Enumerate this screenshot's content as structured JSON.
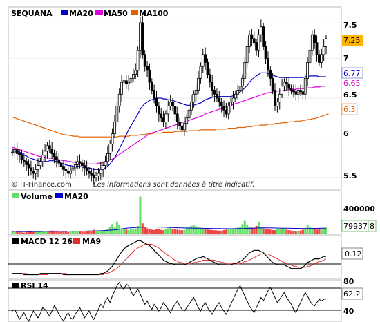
{
  "chart_data": [
    {
      "type": "candlestick",
      "title": "SEQUANA",
      "legend": [
        "MA20",
        "MA50",
        "MA100"
      ],
      "colors": {
        "MA20": "#0000c8",
        "MA50": "#e000e0",
        "MA100": "#e06000",
        "bull": "#ffffff",
        "bear": "#000000"
      },
      "ylim": [
        5.35,
        7.65
      ],
      "yticks": [
        "7.5",
        "7",
        "6.5",
        "6",
        "5.5"
      ],
      "last_labels": {
        "price": "7.25",
        "ma20": "6.77",
        "ma50": "6.65",
        "ma100": "6.3"
      },
      "close": [
        5.82,
        5.85,
        5.8,
        5.78,
        5.72,
        5.7,
        5.66,
        5.62,
        5.58,
        5.55,
        5.6,
        5.65,
        5.7,
        5.78,
        5.83,
        5.9,
        5.86,
        5.8,
        5.76,
        5.72,
        5.68,
        5.64,
        5.6,
        5.58,
        5.55,
        5.58,
        5.62,
        5.66,
        5.7,
        5.68,
        5.65,
        5.62,
        5.58,
        5.55,
        5.53,
        5.5,
        5.52,
        5.55,
        5.6,
        5.65,
        5.7,
        5.8,
        5.92,
        6.05,
        6.2,
        6.4,
        6.55,
        6.7,
        6.72,
        6.68,
        6.7,
        6.75,
        6.8,
        6.85,
        7.1,
        7.45,
        7.05,
        6.9,
        6.85,
        6.7,
        6.6,
        6.5,
        6.4,
        6.3,
        6.25,
        6.2,
        6.3,
        6.4,
        6.45,
        6.4,
        6.3,
        6.2,
        6.15,
        6.1,
        6.18,
        6.25,
        6.35,
        6.45,
        6.55,
        6.6,
        6.75,
        6.9,
        7.05,
        6.95,
        6.8,
        6.7,
        6.6,
        6.55,
        6.5,
        6.45,
        6.4,
        6.35,
        6.3,
        6.4,
        6.45,
        6.5,
        6.55,
        6.6,
        6.65,
        6.75,
        6.95,
        7.15,
        7.3,
        7.25,
        7.2,
        7.1,
        7.3,
        7.4,
        7.15,
        7.0,
        6.85,
        6.75,
        6.6,
        6.4,
        6.45,
        6.55,
        6.65,
        6.7,
        6.68,
        6.62,
        6.6,
        6.58,
        6.55,
        6.6,
        6.58,
        6.55,
        6.75,
        6.95,
        7.1,
        7.3,
        7.2,
        7.05,
        6.95,
        7.05,
        7.15,
        7.25
      ],
      "ma20": [
        5.85,
        5.84,
        5.83,
        5.82,
        5.8,
        5.78,
        5.77,
        5.75,
        5.74,
        5.73,
        5.72,
        5.71,
        5.7,
        5.7,
        5.7,
        5.7,
        5.71,
        5.71,
        5.71,
        5.7,
        5.69,
        5.68,
        5.67,
        5.66,
        5.65,
        5.65,
        5.64,
        5.64,
        5.64,
        5.64,
        5.63,
        5.63,
        5.62,
        5.62,
        5.61,
        5.6,
        5.6,
        5.6,
        5.6,
        5.61,
        5.62,
        5.64,
        5.67,
        5.71,
        5.75,
        5.8,
        5.86,
        5.92,
        5.98,
        6.04,
        6.1,
        6.15,
        6.2,
        6.25,
        6.3,
        6.36,
        6.4,
        6.43,
        6.45,
        6.47,
        6.48,
        6.49,
        6.5,
        6.5,
        6.5,
        6.49,
        6.49,
        6.48,
        6.48,
        6.47,
        6.46,
        6.45,
        6.44,
        6.43,
        6.42,
        6.41,
        6.41,
        6.41,
        6.41,
        6.42,
        6.43,
        6.44,
        6.46,
        6.48,
        6.49,
        6.5,
        6.51,
        6.52,
        6.52,
        6.52,
        6.52,
        6.52,
        6.52,
        6.52,
        6.52,
        6.53,
        6.54,
        6.56,
        6.58,
        6.6,
        6.63,
        6.66,
        6.7,
        6.73,
        6.76,
        6.78,
        6.8,
        6.82,
        6.82,
        6.82,
        6.81,
        6.8,
        6.79,
        6.78,
        6.77,
        6.76,
        6.76,
        6.76,
        6.76,
        6.76,
        6.76,
        6.76,
        6.76,
        6.76,
        6.76,
        6.76,
        6.77,
        6.77,
        6.78,
        6.78,
        6.78,
        6.78,
        6.77,
        6.77,
        6.77,
        6.77
      ],
      "ma50": [
        5.88,
        5.87,
        5.86,
        5.85,
        5.84,
        5.83,
        5.82,
        5.81,
        5.8,
        5.79,
        5.78,
        5.77,
        5.76,
        5.76,
        5.75,
        5.75,
        5.74,
        5.74,
        5.73,
        5.73,
        5.72,
        5.72,
        5.71,
        5.71,
        5.7,
        5.7,
        5.69,
        5.69,
        5.68,
        5.68,
        5.68,
        5.67,
        5.67,
        5.67,
        5.67,
        5.67,
        5.67,
        5.68,
        5.68,
        5.69,
        5.7,
        5.71,
        5.72,
        5.73,
        5.75,
        5.77,
        5.79,
        5.81,
        5.83,
        5.85,
        5.87,
        5.89,
        5.91,
        5.93,
        5.95,
        5.97,
        5.99,
        6.01,
        6.03,
        6.05,
        6.06,
        6.07,
        6.08,
        6.09,
        6.1,
        6.11,
        6.12,
        6.13,
        6.14,
        6.15,
        6.16,
        6.17,
        6.18,
        6.19,
        6.2,
        6.21,
        6.22,
        6.23,
        6.24,
        6.25,
        6.26,
        6.27,
        6.28,
        6.3,
        6.31,
        6.32,
        6.33,
        6.34,
        6.35,
        6.36,
        6.37,
        6.38,
        6.39,
        6.4,
        6.41,
        6.42,
        6.43,
        6.44,
        6.45,
        6.46,
        6.47,
        6.48,
        6.49,
        6.5,
        6.51,
        6.52,
        6.53,
        6.54,
        6.55,
        6.56,
        6.57,
        6.57,
        6.58,
        6.58,
        6.59,
        6.59,
        6.6,
        6.6,
        6.6,
        6.61,
        6.61,
        6.61,
        6.61,
        6.62,
        6.62,
        6.62,
        6.62,
        6.63,
        6.63,
        6.63,
        6.64,
        6.64,
        6.64,
        6.65,
        6.65,
        6.65
      ],
      "ma100": [
        6.26,
        6.25,
        6.24,
        6.23,
        6.22,
        6.21,
        6.2,
        6.19,
        6.18,
        6.17,
        6.16,
        6.15,
        6.14,
        6.13,
        6.12,
        6.11,
        6.1,
        6.09,
        6.08,
        6.07,
        6.06,
        6.05,
        6.04,
        6.04,
        6.03,
        6.03,
        6.02,
        6.02,
        6.02,
        6.01,
        6.01,
        6.01,
        6.01,
        6.01,
        6.01,
        6.01,
        6.01,
        6.01,
        6.01,
        6.01,
        6.01,
        6.01,
        6.01,
        6.01,
        6.01,
        6.01,
        6.02,
        6.02,
        6.02,
        6.02,
        6.02,
        6.03,
        6.03,
        6.03,
        6.03,
        6.04,
        6.04,
        6.04,
        6.05,
        6.05,
        6.05,
        6.06,
        6.06,
        6.06,
        6.06,
        6.07,
        6.07,
        6.07,
        6.07,
        6.07,
        6.08,
        6.08,
        6.08,
        6.08,
        6.08,
        6.08,
        6.09,
        6.09,
        6.09,
        6.09,
        6.09,
        6.1,
        6.1,
        6.1,
        6.1,
        6.1,
        6.1,
        6.1,
        6.11,
        6.11,
        6.11,
        6.11,
        6.11,
        6.12,
        6.12,
        6.12,
        6.12,
        6.13,
        6.13,
        6.13,
        6.13,
        6.14,
        6.14,
        6.14,
        6.15,
        6.15,
        6.15,
        6.16,
        6.16,
        6.16,
        6.17,
        6.17,
        6.17,
        6.18,
        6.18,
        6.18,
        6.19,
        6.19,
        6.19,
        6.2,
        6.2,
        6.2,
        6.21,
        6.21,
        6.21,
        6.22,
        6.22,
        6.23,
        6.23,
        6.24,
        6.24,
        6.25,
        6.26,
        6.27,
        6.28,
        6.29,
        6.3
      ]
    },
    {
      "type": "bar",
      "title": "Volume",
      "legend": [
        "Volume",
        "MA20"
      ],
      "colors": {
        "up": "#66dd66",
        "down": "#ee4444",
        "ma": "#0000c8"
      },
      "ylim": [
        0,
        520000
      ],
      "yticks": [
        "400000"
      ],
      "last_labels": {
        "volume": "79937",
        "extra": "8"
      },
      "values": [
        40000,
        25000,
        30000,
        35000,
        22000,
        18000,
        28000,
        42000,
        30000,
        26000,
        35000,
        40000,
        38000,
        30000,
        24000,
        28000,
        32000,
        45000,
        36000,
        40000,
        30000,
        28000,
        32000,
        35000,
        26000,
        30000,
        34000,
        38000,
        42000,
        36000,
        32000,
        30000,
        38000,
        34000,
        40000,
        52000,
        44000,
        38000,
        36000,
        44000,
        48000,
        60000,
        90000,
        120000,
        80000,
        150000,
        110000,
        70000,
        60000,
        55000,
        50000,
        58000,
        65000,
        70000,
        100000,
        450000,
        130000,
        90000,
        70000,
        60000,
        55000,
        50000,
        60000,
        58000,
        52000,
        48000,
        62000,
        70000,
        75000,
        65000,
        60000,
        55000,
        50000,
        48000,
        52000,
        80000,
        90000,
        100000,
        110000,
        95000,
        80000,
        70000,
        65000,
        60000,
        55000,
        52000,
        50000,
        48000,
        46000,
        44000,
        42000,
        50000,
        55000,
        60000,
        62000,
        70000,
        75000,
        80000,
        85000,
        120000,
        160000,
        110000,
        90000,
        80000,
        75000,
        100000,
        150000,
        90000,
        70000,
        65000,
        60000,
        55000,
        50000,
        48000,
        60000,
        65000,
        70000,
        60000,
        55000,
        50000,
        45000,
        42000,
        40000,
        38000,
        45000,
        55000,
        75000,
        110000,
        90000,
        70000,
        60000,
        55000,
        60000,
        65000,
        70000,
        79937
      ],
      "ma20": [
        34000,
        33500,
        33000,
        32800,
        32500,
        32300,
        32000,
        32000,
        32200,
        32500,
        32800,
        33000,
        33200,
        33500,
        33800,
        34000,
        34200,
        34500,
        34800,
        35000,
        35200,
        35400,
        35600,
        35800,
        36000,
        36200,
        36400,
        36600,
        36800,
        37000,
        37400,
        37800,
        38200,
        38600,
        39000,
        39500,
        40000,
        41000,
        42000,
        43500,
        45000,
        47000,
        49000,
        51000,
        53000,
        56000,
        60000,
        64000,
        68000,
        72000,
        74000,
        76000,
        78000,
        80000,
        82000,
        84000,
        85000,
        85500,
        86000,
        86500,
        87000,
        87000,
        86500,
        86000,
        85000,
        84000,
        83000,
        82000,
        81000,
        80000,
        79000,
        78000,
        77000,
        76000,
        75000,
        74500,
        74000,
        73500,
        73000,
        72500,
        72000,
        71500,
        71000,
        70500,
        70000,
        69500,
        69000,
        68500,
        68000,
        67500,
        67000,
        66800,
        66600,
        66400,
        66200,
        66000,
        66500,
        67000,
        67500,
        68000,
        69000,
        70000,
        71000,
        72000,
        73000,
        74000,
        75000,
        75500,
        76000,
        76000,
        75800,
        75500,
        75000,
        74500,
        74000,
        73500,
        73000,
        72500,
        72000,
        71500,
        71000,
        70500,
        70000,
        69500,
        69000,
        68500,
        68000,
        68500,
        69000,
        69500,
        70000,
        70500,
        71000,
        71500,
        72000,
        72500
      ]
    },
    {
      "type": "line",
      "title": "MACD 12 26",
      "legend": [
        "MACD 12 26",
        "MA9"
      ],
      "colors": {
        "macd": "#000000",
        "signal": "#e03030"
      },
      "ylim": [
        -0.05,
        0.28
      ],
      "last_labels": {
        "macd": "0.12"
      },
      "macd": [
        -0.02,
        -0.02,
        -0.02,
        -0.02,
        -0.02,
        -0.03,
        -0.03,
        -0.03,
        -0.03,
        -0.03,
        -0.03,
        -0.03,
        -0.02,
        -0.02,
        -0.02,
        -0.02,
        -0.02,
        -0.02,
        -0.02,
        -0.02,
        -0.02,
        -0.02,
        -0.03,
        -0.03,
        -0.03,
        -0.03,
        -0.03,
        -0.03,
        -0.03,
        -0.03,
        -0.03,
        -0.03,
        -0.03,
        -0.03,
        -0.03,
        -0.03,
        -0.03,
        -0.03,
        -0.02,
        -0.02,
        -0.01,
        0.0,
        0.02,
        0.04,
        0.07,
        0.1,
        0.13,
        0.16,
        0.18,
        0.2,
        0.21,
        0.22,
        0.23,
        0.24,
        0.25,
        0.25,
        0.24,
        0.23,
        0.22,
        0.21,
        0.19,
        0.17,
        0.15,
        0.13,
        0.11,
        0.09,
        0.08,
        0.07,
        0.06,
        0.06,
        0.05,
        0.05,
        0.05,
        0.05,
        0.05,
        0.06,
        0.07,
        0.08,
        0.09,
        0.1,
        0.11,
        0.11,
        0.12,
        0.11,
        0.1,
        0.09,
        0.08,
        0.07,
        0.06,
        0.05,
        0.05,
        0.05,
        0.05,
        0.05,
        0.05,
        0.06,
        0.06,
        0.07,
        0.08,
        0.09,
        0.11,
        0.13,
        0.15,
        0.16,
        0.17,
        0.17,
        0.17,
        0.16,
        0.15,
        0.13,
        0.11,
        0.09,
        0.07,
        0.06,
        0.05,
        0.05,
        0.05,
        0.05,
        0.04,
        0.03,
        0.02,
        0.02,
        0.02,
        0.02,
        0.02,
        0.03,
        0.05,
        0.07,
        0.08,
        0.09,
        0.1,
        0.1,
        0.1,
        0.11,
        0.12,
        0.12
      ],
      "ma9": [
        -0.02,
        -0.02,
        -0.02,
        -0.02,
        -0.02,
        -0.02,
        -0.02,
        -0.03,
        -0.03,
        -0.03,
        -0.03,
        -0.03,
        -0.03,
        -0.03,
        -0.03,
        -0.03,
        -0.02,
        -0.02,
        -0.02,
        -0.02,
        -0.02,
        -0.02,
        -0.02,
        -0.02,
        -0.03,
        -0.03,
        -0.03,
        -0.03,
        -0.03,
        -0.03,
        -0.03,
        -0.03,
        -0.03,
        -0.03,
        -0.03,
        -0.03,
        -0.03,
        -0.03,
        -0.03,
        -0.03,
        -0.02,
        -0.02,
        -0.01,
        0.0,
        0.01,
        0.02,
        0.04,
        0.06,
        0.08,
        0.1,
        0.12,
        0.14,
        0.16,
        0.18,
        0.19,
        0.2,
        0.21,
        0.22,
        0.22,
        0.22,
        0.22,
        0.21,
        0.2,
        0.19,
        0.17,
        0.16,
        0.14,
        0.13,
        0.12,
        0.1,
        0.09,
        0.08,
        0.07,
        0.07,
        0.06,
        0.06,
        0.06,
        0.06,
        0.07,
        0.07,
        0.08,
        0.08,
        0.09,
        0.09,
        0.09,
        0.09,
        0.09,
        0.09,
        0.08,
        0.08,
        0.07,
        0.07,
        0.06,
        0.06,
        0.06,
        0.06,
        0.06,
        0.06,
        0.06,
        0.07,
        0.08,
        0.08,
        0.09,
        0.1,
        0.11,
        0.12,
        0.13,
        0.14,
        0.14,
        0.14,
        0.14,
        0.13,
        0.12,
        0.11,
        0.1,
        0.09,
        0.08,
        0.07,
        0.06,
        0.05,
        0.05,
        0.04,
        0.04,
        0.03,
        0.03,
        0.03,
        0.03,
        0.04,
        0.04,
        0.05,
        0.06,
        0.07,
        0.08,
        0.08,
        0.09,
        0.1
      ]
    },
    {
      "type": "line",
      "title": "RSI 14",
      "colors": {
        "rsi": "#000000"
      },
      "ylim": [
        35,
        85
      ],
      "yticks": [
        "80",
        "40"
      ],
      "last_labels": {
        "rsi": "62.2"
      },
      "rsi": [
        48,
        50,
        44,
        38,
        42,
        46,
        40,
        36,
        42,
        48,
        44,
        40,
        45,
        52,
        50,
        46,
        42,
        48,
        54,
        50,
        44,
        40,
        36,
        42,
        46,
        40,
        38,
        44,
        48,
        52,
        46,
        40,
        44,
        48,
        42,
        38,
        44,
        50,
        56,
        52,
        60,
        64,
        58,
        66,
        72,
        78,
        82,
        76,
        74,
        80,
        78,
        72,
        66,
        70,
        74,
        68,
        62,
        56,
        60,
        54,
        50,
        56,
        52,
        48,
        52,
        58,
        54,
        50,
        46,
        52,
        56,
        60,
        54,
        50,
        48,
        52,
        56,
        60,
        64,
        58,
        52,
        48,
        54,
        58,
        52,
        48,
        44,
        50,
        54,
        58,
        52,
        48,
        44,
        50,
        56,
        62,
        68,
        74,
        78,
        72,
        66,
        60,
        54,
        50,
        46,
        52,
        58,
        64,
        60,
        66,
        72,
        76,
        70,
        64,
        58,
        62,
        66,
        70,
        64,
        60,
        56,
        50,
        46,
        52,
        58,
        64,
        70,
        66,
        60,
        56,
        54,
        58,
        62,
        60,
        62,
        62.2
      ]
    }
  ],
  "texts": {
    "credit": "© IT-Finance.com",
    "disclaimer": "Les informations sont données à titre indicatif."
  }
}
